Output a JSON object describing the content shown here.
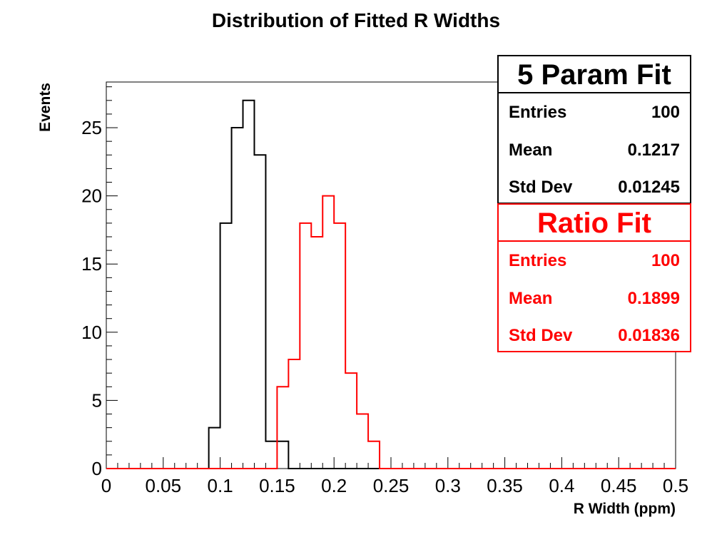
{
  "chart_data": {
    "type": "histogram",
    "title": "Distribution of Fitted R Widths",
    "xlabel": "R Width (ppm)",
    "ylabel": "Events",
    "xlim": [
      0,
      0.5
    ],
    "ylim": [
      0,
      28.35
    ],
    "bin_width": 0.01,
    "x_ticks": [
      "0",
      "0.05",
      "0.1",
      "0.15",
      "0.2",
      "0.25",
      "0.3",
      "0.35",
      "0.4",
      "0.45",
      "0.5"
    ],
    "y_ticks": [
      "0",
      "5",
      "10",
      "15",
      "20",
      "25"
    ],
    "grid": false,
    "series": [
      {
        "name": "5 Param Fit",
        "color": "#000000",
        "bin_start": 0.09,
        "counts": [
          3,
          18,
          25,
          27,
          23,
          2,
          2
        ]
      },
      {
        "name": "Ratio Fit",
        "color": "#ff0000",
        "bin_start": 0.15,
        "counts": [
          6,
          8,
          18,
          17,
          20,
          18,
          7,
          4,
          2
        ]
      }
    ]
  },
  "stats_boxes": [
    {
      "title": "5 Param Fit",
      "color": "#000000",
      "rows": [
        {
          "label": "Entries",
          "value": "100"
        },
        {
          "label": "Mean",
          "value": "0.1217"
        },
        {
          "label": "Std Dev",
          "value": "0.01245"
        }
      ]
    },
    {
      "title": "Ratio Fit",
      "color": "#ff0000",
      "rows": [
        {
          "label": "Entries",
          "value": "100"
        },
        {
          "label": "Mean",
          "value": "0.1899"
        },
        {
          "label": "Std Dev",
          "value": "0.01836"
        }
      ]
    }
  ]
}
